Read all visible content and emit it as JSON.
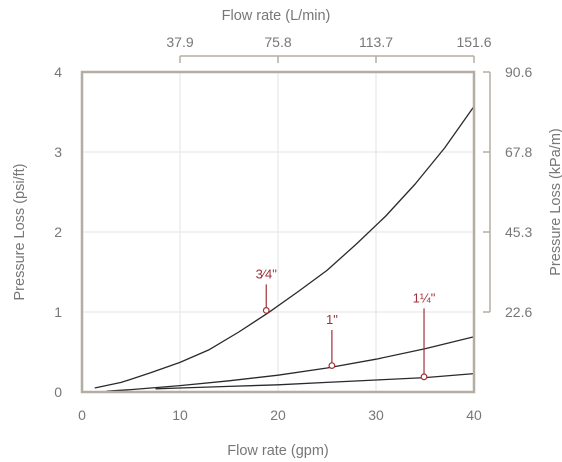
{
  "chart_data": {
    "type": "line",
    "title": "",
    "xlabel": "Flow rate (gpm)",
    "ylabel": "Pressure Loss (psi/ft)",
    "xlabel_top": "Flow rate (L/min)",
    "ylabel_right": "Pressure Loss (kPa/m)",
    "xlim": [
      0,
      40
    ],
    "ylim": [
      0,
      4
    ],
    "x_ticks": [
      0,
      10,
      20,
      30,
      40
    ],
    "y_ticks": [
      0,
      1,
      2,
      3,
      4
    ],
    "x_ticks_top": [
      {
        "value": 10,
        "label": "37.9"
      },
      {
        "value": 20,
        "label": "75.8"
      },
      {
        "value": 30,
        "label": "113.7"
      },
      {
        "value": 40,
        "label": "151.6"
      }
    ],
    "y_ticks_right": [
      {
        "value": 1,
        "label": "22.6"
      },
      {
        "value": 2,
        "label": "45.3"
      },
      {
        "value": 3,
        "label": "67.8"
      },
      {
        "value": 4,
        "label": "90.6"
      }
    ],
    "grid": true,
    "series": [
      {
        "name": "3⁄4\"",
        "x": [
          1.3,
          4,
          7,
          10,
          13,
          16,
          19,
          22,
          25,
          28,
          31,
          34,
          37,
          40
        ],
        "y": [
          0.05,
          0.12,
          0.24,
          0.37,
          0.53,
          0.75,
          0.99,
          1.25,
          1.52,
          1.85,
          2.2,
          2.6,
          3.05,
          3.57
        ],
        "callout": {
          "x": 18.8,
          "y": 1.02,
          "label_y": 1.42
        }
      },
      {
        "name": "1\"",
        "x": [
          2.5,
          5,
          10,
          15,
          20,
          25,
          30,
          35,
          40
        ],
        "y": [
          0.01,
          0.03,
          0.08,
          0.14,
          0.21,
          0.3,
          0.41,
          0.54,
          0.69
        ],
        "callout": {
          "x": 25.5,
          "y": 0.33,
          "label_y": 0.85
        }
      },
      {
        "name": "1¼\"",
        "x": [
          7.5,
          10,
          15,
          20,
          25,
          30,
          35,
          40
        ],
        "y": [
          0.04,
          0.05,
          0.07,
          0.09,
          0.12,
          0.15,
          0.18,
          0.23
        ],
        "callout": {
          "x": 34.9,
          "y": 0.19,
          "label_y": 1.12
        }
      }
    ]
  }
}
